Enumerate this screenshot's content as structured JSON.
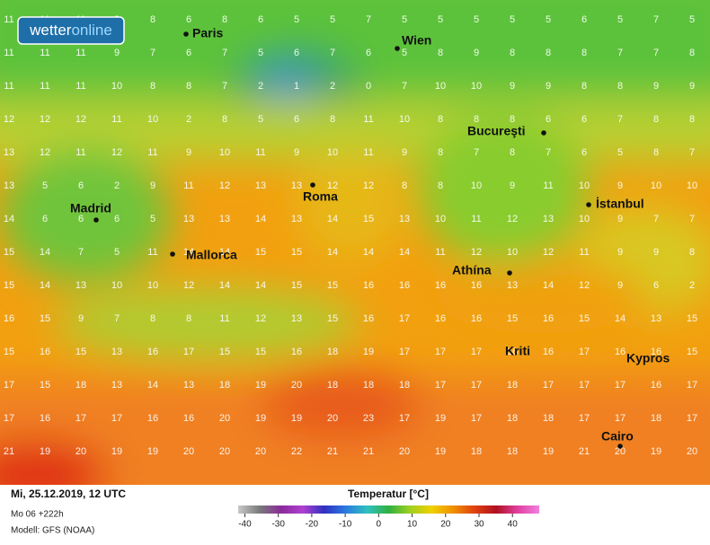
{
  "logo": {
    "part1": "wetter",
    "part2": "online"
  },
  "cities": [
    "Paris",
    "Wien",
    "Bucureşti",
    "Madrid",
    "Roma",
    "İstanbul",
    "Mallorca",
    "Athína",
    "Kriti",
    "Kypros",
    "Cairo"
  ],
  "grid": {
    "rows": [
      [
        11,
        11,
        11,
        9,
        8,
        6,
        8,
        6,
        5,
        5,
        7,
        5,
        5,
        5,
        5,
        5,
        6,
        5,
        7,
        5
      ],
      [
        11,
        11,
        11,
        9,
        7,
        6,
        7,
        5,
        6,
        7,
        6,
        5,
        8,
        9,
        8,
        8,
        8,
        7,
        7,
        8
      ],
      [
        11,
        11,
        11,
        10,
        8,
        8,
        7,
        2,
        1,
        2,
        0,
        7,
        10,
        10,
        9,
        9,
        8,
        8,
        9,
        9
      ],
      [
        12,
        12,
        12,
        11,
        10,
        2,
        8,
        5,
        6,
        8,
        11,
        10,
        8,
        8,
        8,
        6,
        6,
        7,
        8,
        8
      ],
      [
        13,
        12,
        11,
        12,
        11,
        9,
        10,
        11,
        9,
        10,
        11,
        9,
        8,
        7,
        8,
        7,
        6,
        5,
        8,
        7
      ],
      [
        13,
        5,
        6,
        2,
        9,
        11,
        12,
        13,
        13,
        12,
        12,
        8,
        8,
        10,
        9,
        11,
        10,
        9,
        10,
        10
      ],
      [
        14,
        6,
        6,
        6,
        5,
        13,
        13,
        14,
        13,
        14,
        15,
        13,
        10,
        11,
        12,
        13,
        10,
        9,
        7,
        7
      ],
      [
        15,
        14,
        7,
        5,
        11,
        14,
        14,
        15,
        15,
        14,
        14,
        14,
        11,
        12,
        10,
        12,
        11,
        9,
        9,
        8
      ],
      [
        15,
        14,
        13,
        10,
        10,
        12,
        14,
        14,
        15,
        15,
        16,
        16,
        16,
        16,
        13,
        14,
        12,
        9,
        6,
        2
      ],
      [
        16,
        15,
        9,
        7,
        8,
        8,
        11,
        12,
        13,
        15,
        16,
        17,
        16,
        16,
        15,
        16,
        15,
        14,
        13,
        15
      ],
      [
        15,
        16,
        15,
        13,
        16,
        17,
        15,
        15,
        16,
        18,
        19,
        17,
        17,
        17,
        16,
        16,
        17,
        16,
        16,
        15
      ],
      [
        17,
        15,
        18,
        13,
        14,
        13,
        18,
        19,
        20,
        18,
        18,
        18,
        17,
        17,
        18,
        17,
        17,
        17,
        16,
        17
      ],
      [
        17,
        16,
        17,
        17,
        16,
        16,
        20,
        19,
        19,
        20,
        23,
        17,
        19,
        17,
        18,
        18,
        17,
        17,
        18,
        17
      ],
      [
        21,
        19,
        20,
        19,
        19,
        20,
        20,
        20,
        22,
        21,
        21,
        20,
        19,
        18,
        18,
        19,
        21,
        20,
        19,
        20
      ]
    ]
  },
  "footer": {
    "date": "Mi, 25.12.2019, 12 UTC",
    "run": "Mo 06 +222h",
    "model": "Modell: GFS (NOAA)"
  },
  "legend": {
    "title": "Temperatur [°C]",
    "range": [
      -42,
      48
    ],
    "ticks": [
      -40,
      -30,
      -20,
      -10,
      0,
      10,
      20,
      30,
      40
    ],
    "colors": [
      "#c8c8c8",
      "#7a7a7a",
      "#8a2a9a",
      "#b040d0",
      "#3030c0",
      "#2a7ae0",
      "#30c0c0",
      "#30b040",
      "#a0d020",
      "#f0d000",
      "#f09000",
      "#e04010",
      "#b01020",
      "#e040a0",
      "#f080e0"
    ]
  }
}
